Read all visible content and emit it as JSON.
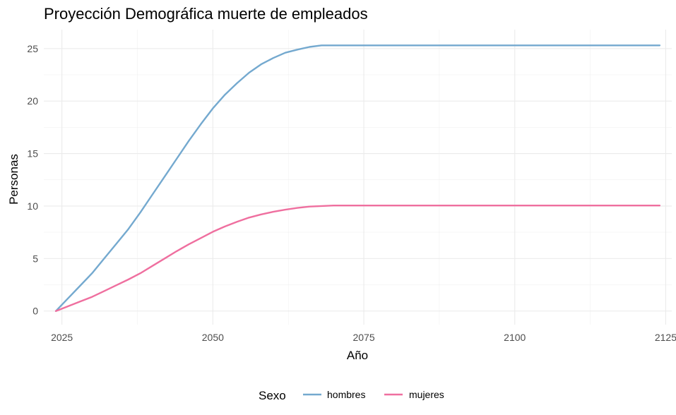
{
  "chart_data": {
    "type": "line",
    "title": "Proyección Demográfica muerte de empleados",
    "xlabel": "Año",
    "ylabel": "Personas",
    "xlim": [
      2022,
      2126
    ],
    "ylim": [
      -1.3,
      26.8
    ],
    "x_ticks": [
      2025,
      2050,
      2075,
      2100,
      2125
    ],
    "y_ticks": [
      0,
      5,
      10,
      15,
      20,
      25
    ],
    "grid": true,
    "legend": {
      "title": "Sexo",
      "position": "bottom"
    },
    "series": [
      {
        "name": "hombres",
        "color": "#74a9cf",
        "x": [
          2024,
          2026,
          2028,
          2030,
          2032,
          2034,
          2036,
          2038,
          2040,
          2042,
          2044,
          2046,
          2048,
          2050,
          2052,
          2054,
          2056,
          2058,
          2060,
          2062,
          2064,
          2066,
          2068,
          2070,
          2080,
          2090,
          2100,
          2110,
          2120,
          2124
        ],
        "y": [
          0,
          1.2,
          2.4,
          3.6,
          5.0,
          6.4,
          7.8,
          9.4,
          11.1,
          12.8,
          14.5,
          16.2,
          17.8,
          19.3,
          20.6,
          21.7,
          22.7,
          23.5,
          24.1,
          24.6,
          24.9,
          25.15,
          25.3,
          25.3,
          25.3,
          25.3,
          25.3,
          25.3,
          25.3,
          25.3
        ]
      },
      {
        "name": "mujeres",
        "color": "#ef6f9f",
        "x": [
          2024,
          2026,
          2028,
          2030,
          2032,
          2034,
          2036,
          2038,
          2040,
          2042,
          2044,
          2046,
          2048,
          2050,
          2052,
          2054,
          2056,
          2058,
          2060,
          2062,
          2064,
          2066,
          2068,
          2070,
          2080,
          2090,
          2100,
          2110,
          2120,
          2124
        ],
        "y": [
          0,
          0.45,
          0.9,
          1.35,
          1.9,
          2.45,
          3.0,
          3.6,
          4.3,
          5.0,
          5.7,
          6.35,
          6.95,
          7.55,
          8.05,
          8.5,
          8.9,
          9.2,
          9.45,
          9.65,
          9.82,
          9.95,
          10.0,
          10.05,
          10.05,
          10.05,
          10.05,
          10.05,
          10.05,
          10.05
        ]
      }
    ]
  }
}
